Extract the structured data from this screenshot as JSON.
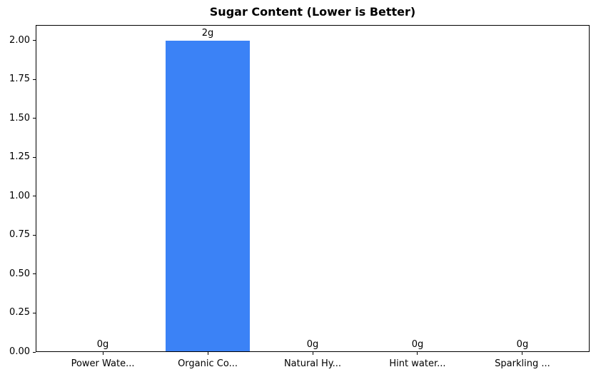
{
  "figure": {
    "background": "#ffffff",
    "text_color": "#000000"
  },
  "chart_data": {
    "type": "bar",
    "title": "Sugar Content (Lower is Better)",
    "xlabel": "",
    "ylabel": "",
    "categories": [
      "Power Wate...",
      "Organic Co...",
      "Natural Hy...",
      "Hint water...",
      "Sparkling ..."
    ],
    "values": [
      0,
      2,
      0,
      0,
      0
    ],
    "bar_labels": [
      "0g",
      "2g",
      "0g",
      "0g",
      "0g"
    ],
    "bar_color": "#3b82f6",
    "axis_color": "#000000",
    "ylim": [
      0,
      2.1
    ],
    "y_tick_values": [
      0.0,
      0.25,
      0.5,
      0.75,
      1.0,
      1.25,
      1.5,
      1.75,
      2.0
    ],
    "y_tick_labels": [
      "0.00",
      "0.25",
      "0.50",
      "0.75",
      "1.00",
      "1.25",
      "1.50",
      "1.75",
      "2.00"
    ],
    "grid": false,
    "legend": null,
    "x_margin": 0.64,
    "bar_rel_width": 0.8
  }
}
